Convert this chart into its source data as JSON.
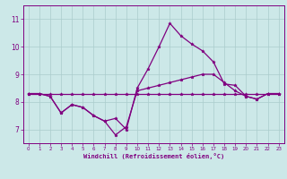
{
  "bg_color": "#cce8e8",
  "line_color": "#800080",
  "grid_color": "#aacccc",
  "xlabel": "Windchill (Refroidissement éolien,°C)",
  "xlabel_color": "#800080",
  "tick_color": "#800080",
  "ylim": [
    6.5,
    11.5
  ],
  "xlim": [
    -0.5,
    23.5
  ],
  "yticks": [
    7,
    8,
    9,
    10,
    11
  ],
  "xticks": [
    0,
    1,
    2,
    3,
    4,
    5,
    6,
    7,
    8,
    9,
    10,
    11,
    12,
    13,
    14,
    15,
    16,
    17,
    18,
    19,
    20,
    21,
    22,
    23
  ],
  "series": [
    [
      8.3,
      8.3,
      8.2,
      7.6,
      7.9,
      7.8,
      7.5,
      7.3,
      7.4,
      7.0,
      8.5,
      9.2,
      10.0,
      10.85,
      10.4,
      10.1,
      9.85,
      9.45,
      8.65,
      8.6,
      8.2,
      8.1,
      8.3,
      8.3
    ],
    [
      8.3,
      8.3,
      8.3,
      8.3,
      8.3,
      8.3,
      8.3,
      8.3,
      8.3,
      8.3,
      8.3,
      8.3,
      8.3,
      8.3,
      8.3,
      8.3,
      8.3,
      8.3,
      8.3,
      8.3,
      8.3,
      8.3,
      8.3,
      8.3
    ],
    [
      8.3,
      8.3,
      8.2,
      7.6,
      7.9,
      7.8,
      7.5,
      7.3,
      6.8,
      7.1,
      8.4,
      8.5,
      8.6,
      8.7,
      8.8,
      8.9,
      9.0,
      9.0,
      8.7,
      8.4,
      8.2,
      8.1,
      8.3,
      8.3
    ]
  ]
}
